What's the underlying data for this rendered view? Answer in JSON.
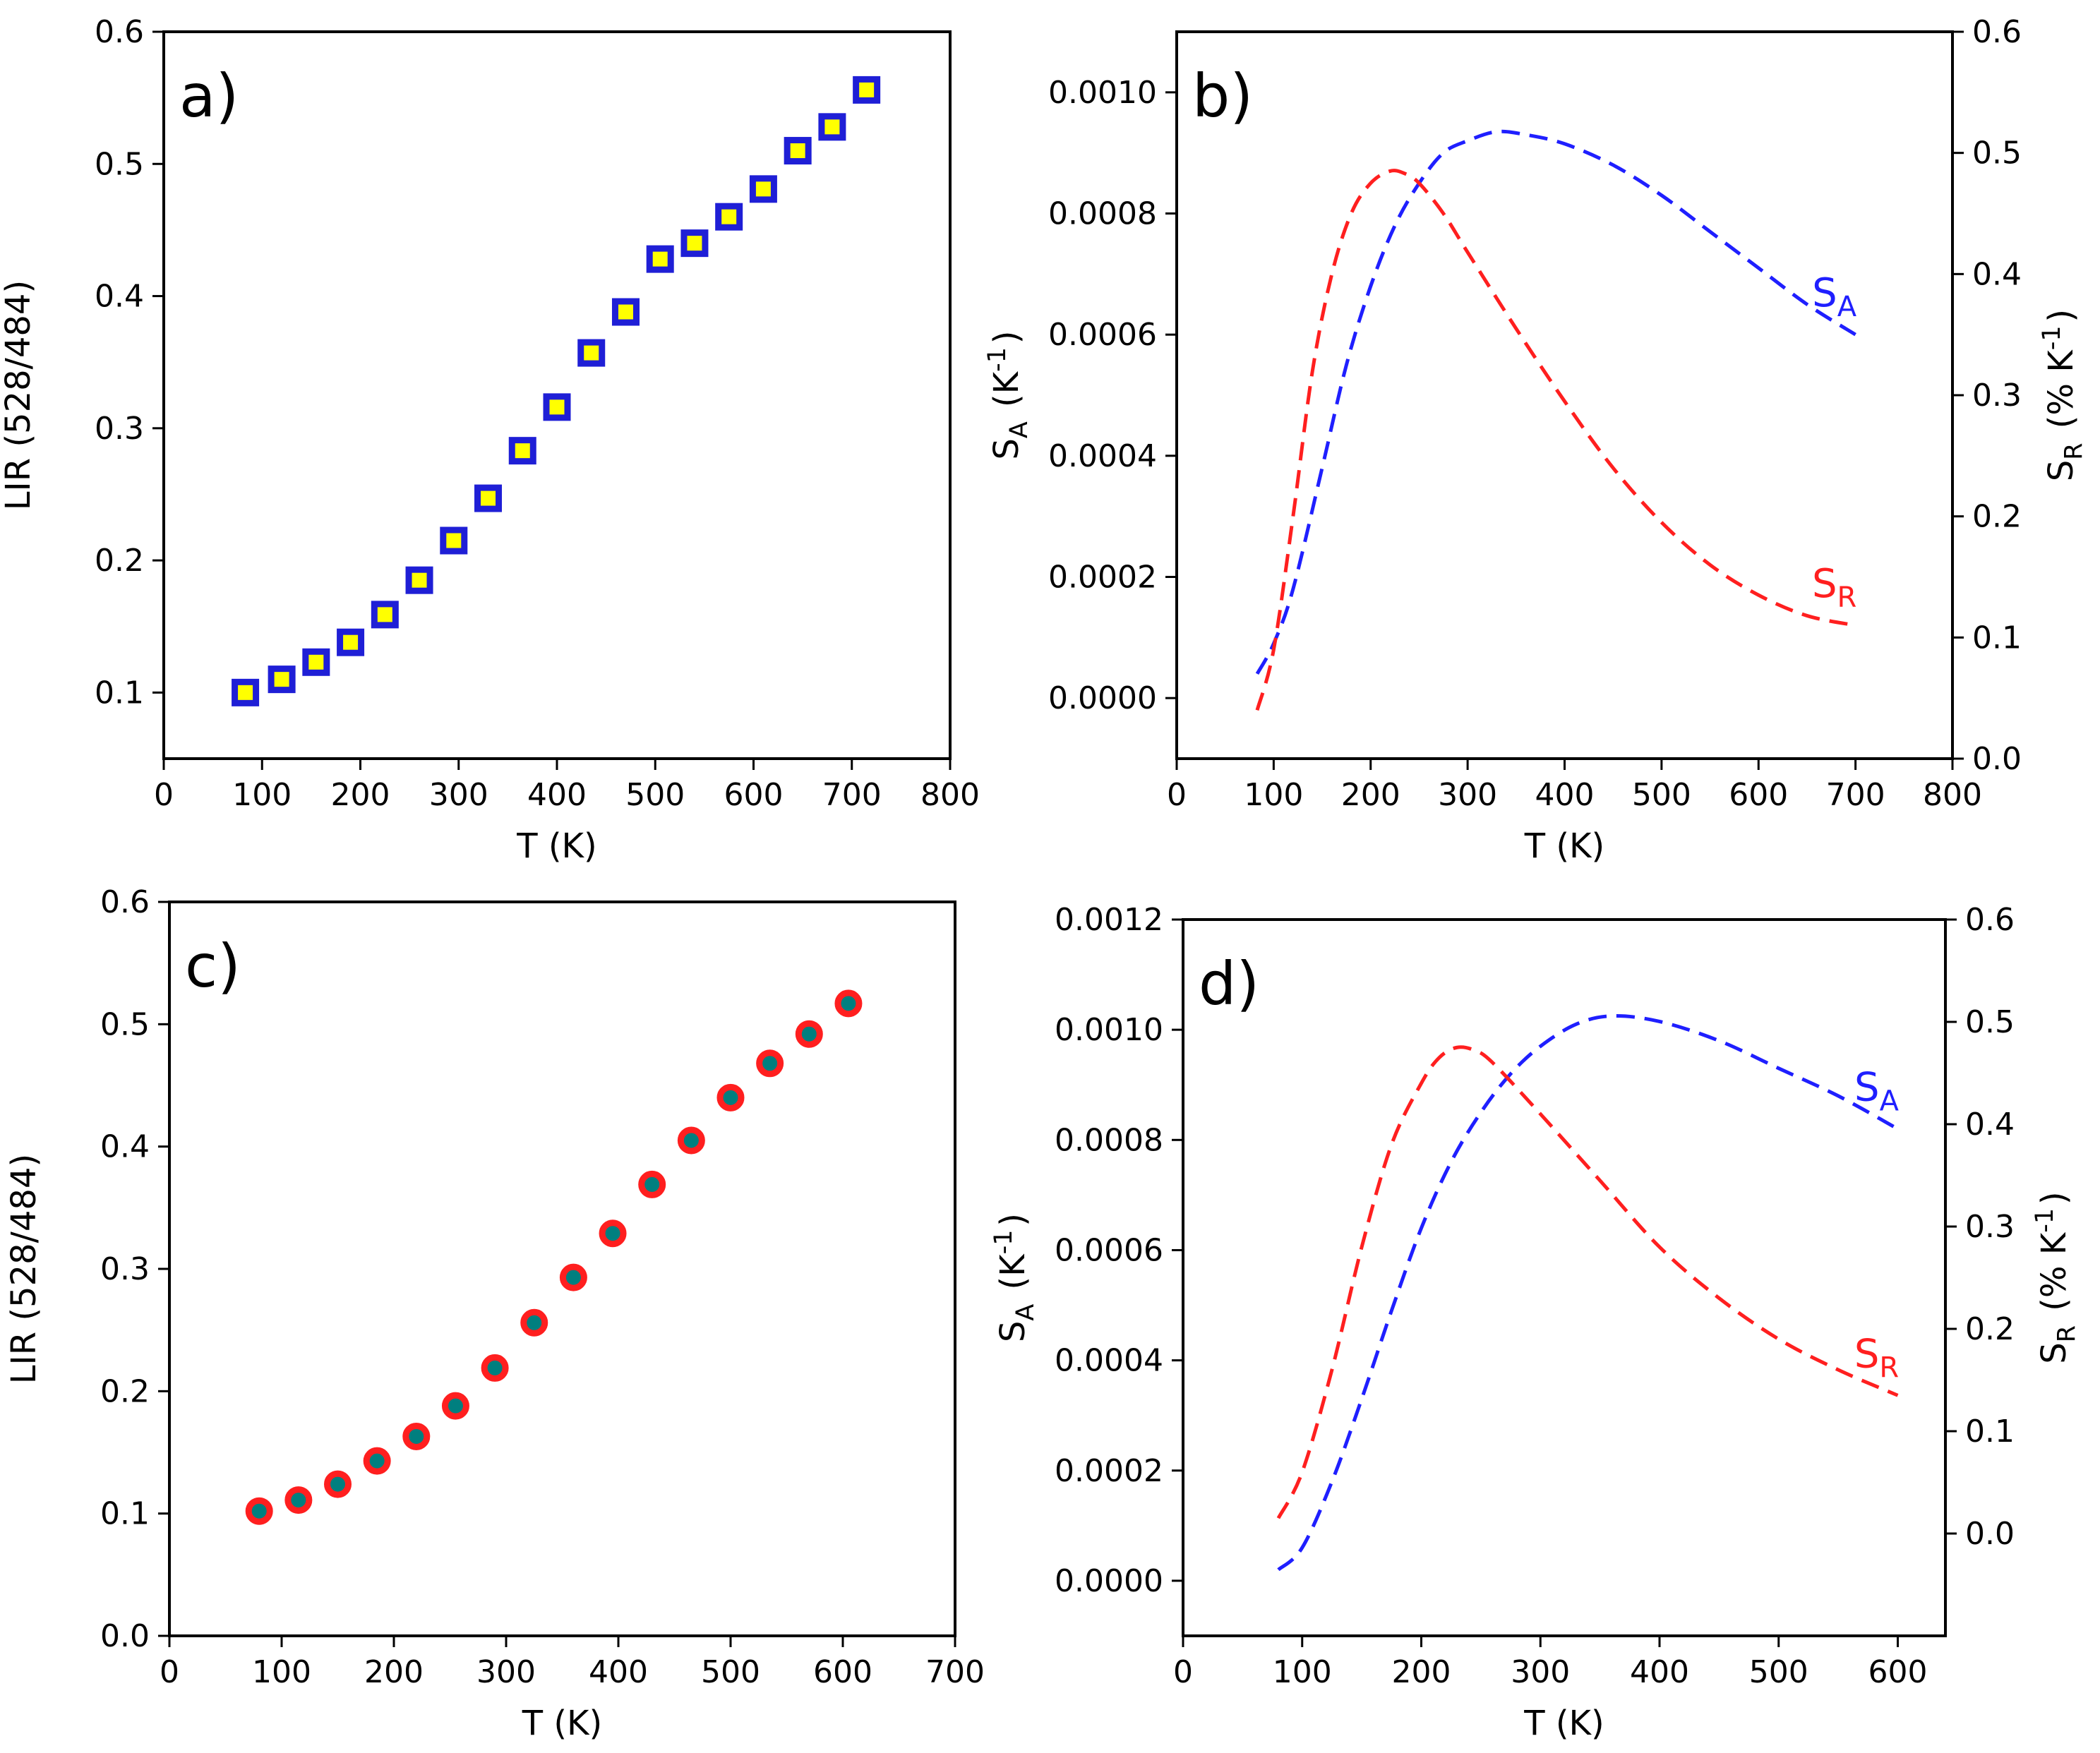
{
  "chart_data": [
    {
      "id": "a",
      "type": "scatter",
      "panel_label": "a)",
      "xlabel": "T (K)",
      "ylabel": "LIR (528/484)",
      "xlim": [
        0,
        800
      ],
      "ylim": [
        0.05,
        0.6
      ],
      "xticks": [
        "0",
        "100",
        "200",
        "300",
        "400",
        "500",
        "600",
        "700",
        "800"
      ],
      "yticks": [
        "0.1",
        "0.2",
        "0.3",
        "0.4",
        "0.5",
        "0.6"
      ],
      "marker": "square",
      "marker_fill": "#ffff00",
      "marker_edge": "#1f1fd6",
      "x": [
        83,
        120,
        155,
        190,
        225,
        260,
        295,
        330,
        365,
        400,
        435,
        470,
        505,
        540,
        575,
        610,
        645,
        680,
        715
      ],
      "y": [
        0.1,
        0.11,
        0.123,
        0.138,
        0.159,
        0.185,
        0.215,
        0.247,
        0.283,
        0.316,
        0.357,
        0.388,
        0.428,
        0.44,
        0.46,
        0.481,
        0.51,
        0.528,
        0.556
      ]
    },
    {
      "id": "b",
      "type": "line",
      "panel_label": "b)",
      "xlabel": "T (K)",
      "ylabel_left": "S_A (K^-1)",
      "ylabel_right": "S_R (% K^-1)",
      "xlim": [
        0,
        800
      ],
      "ylim_left": [
        -0.0001,
        0.0011
      ],
      "ylim_right": [
        0,
        0.6
      ],
      "xticks": [
        "0",
        "100",
        "200",
        "300",
        "400",
        "500",
        "600",
        "700",
        "800"
      ],
      "yticks_left": [
        "0.0000",
        "0.0002",
        "0.0004",
        "0.0006",
        "0.0008",
        "0.0010"
      ],
      "yticks_right": [
        "0.0",
        "0.1",
        "0.2",
        "0.3",
        "0.4",
        "0.5",
        "0.6"
      ],
      "series": [
        {
          "name": "S_A",
          "axis": "left",
          "color": "#1f1fff",
          "style": "dashed",
          "x": [
            83,
            100,
            120,
            150,
            175,
            200,
            225,
            250,
            275,
            300,
            330,
            360,
            400,
            450,
            500,
            550,
            600,
            650,
            700
          ],
          "y": [
            4e-05,
            9e-05,
            0.00018,
            0.00038,
            0.00055,
            0.00068,
            0.00078,
            0.00085,
            0.0009,
            0.00092,
            0.000935,
            0.00093,
            0.000915,
            0.00088,
            0.00083,
            0.00077,
            0.00071,
            0.00065,
            0.0006
          ]
        },
        {
          "name": "S_R",
          "axis": "right",
          "color": "#ff1f1f",
          "style": "dashed",
          "x": [
            83,
            100,
            120,
            140,
            160,
            180,
            200,
            220,
            235,
            250,
            275,
            300,
            350,
            400,
            450,
            500,
            550,
            600,
            650,
            700
          ],
          "y": [
            0.04,
            0.09,
            0.2,
            0.32,
            0.4,
            0.45,
            0.475,
            0.485,
            0.483,
            0.475,
            0.45,
            0.418,
            0.355,
            0.295,
            0.24,
            0.195,
            0.16,
            0.135,
            0.118,
            0.11
          ]
        }
      ]
    },
    {
      "id": "c",
      "type": "scatter",
      "panel_label": "c)",
      "xlabel": "T (K)",
      "ylabel": "LIR (528/484)",
      "xlim": [
        0,
        700
      ],
      "ylim": [
        0,
        0.6
      ],
      "xticks": [
        "0",
        "100",
        "200",
        "300",
        "400",
        "500",
        "600",
        "700"
      ],
      "yticks": [
        "0.0",
        "0.1",
        "0.2",
        "0.3",
        "0.4",
        "0.5",
        "0.6"
      ],
      "marker": "circle",
      "marker_fill": "#007f7f",
      "marker_edge": "#ff1f1f",
      "x": [
        80,
        115,
        150,
        185,
        220,
        255,
        290,
        325,
        360,
        395,
        430,
        465,
        500,
        535,
        570,
        605
      ],
      "y": [
        0.102,
        0.111,
        0.124,
        0.143,
        0.163,
        0.188,
        0.219,
        0.256,
        0.293,
        0.329,
        0.369,
        0.405,
        0.44,
        0.468,
        0.492,
        0.517
      ]
    },
    {
      "id": "d",
      "type": "line",
      "panel_label": "d)",
      "xlabel": "T (K)",
      "ylabel_left": "S_A (K^-1)",
      "ylabel_right": "S_R (% K^-1)",
      "xlim": [
        0,
        640
      ],
      "ylim_left": [
        -0.0001,
        0.0012
      ],
      "ylim_right": [
        -0.1,
        0.6
      ],
      "xticks": [
        "0",
        "100",
        "200",
        "300",
        "400",
        "500",
        "600"
      ],
      "yticks_left": [
        "0.0000",
        "0.0002",
        "0.0004",
        "0.0006",
        "0.0008",
        "0.0010",
        "0.0012"
      ],
      "yticks_right": [
        "0.0",
        "0.1",
        "0.2",
        "0.3",
        "0.4",
        "0.5",
        "0.6"
      ],
      "series": [
        {
          "name": "S_A",
          "axis": "left",
          "color": "#1f1fff",
          "style": "dashed",
          "x": [
            80,
            100,
            125,
            150,
            175,
            200,
            225,
            250,
            275,
            300,
            330,
            360,
            400,
            450,
            500,
            550,
            600
          ],
          "y": [
            2e-05,
            6e-05,
            0.00018,
            0.00033,
            0.00049,
            0.00064,
            0.00076,
            0.00085,
            0.00092,
            0.00097,
            0.00101,
            0.001025,
            0.001015,
            0.00098,
            0.00093,
            0.00088,
            0.00082
          ]
        },
        {
          "name": "S_R",
          "axis": "right",
          "color": "#ff1f1f",
          "style": "dashed",
          "x": [
            80,
            100,
            125,
            150,
            175,
            200,
            215,
            230,
            245,
            260,
            300,
            350,
            400,
            450,
            500,
            550,
            600
          ],
          "y": [
            0.015,
            0.06,
            0.16,
            0.28,
            0.38,
            0.44,
            0.465,
            0.475,
            0.472,
            0.46,
            0.41,
            0.345,
            0.28,
            0.23,
            0.19,
            0.16,
            0.135
          ]
        }
      ]
    }
  ]
}
